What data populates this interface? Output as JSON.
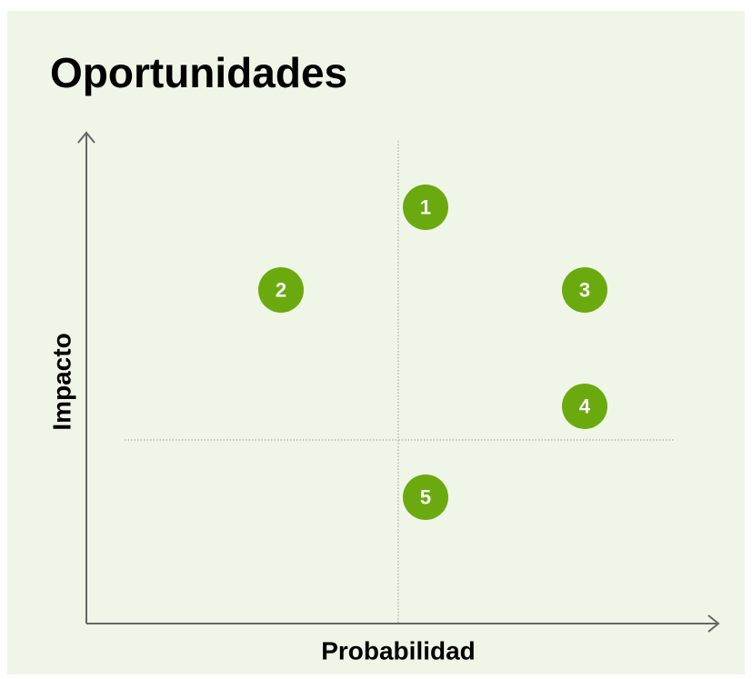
{
  "title": "Oportunidades",
  "axes": {
    "x_label": "Probabilidad",
    "y_label": "Impacto"
  },
  "nodes": [
    {
      "label": "1"
    },
    {
      "label": "2"
    },
    {
      "label": "3"
    },
    {
      "label": "4"
    },
    {
      "label": "5"
    }
  ]
}
